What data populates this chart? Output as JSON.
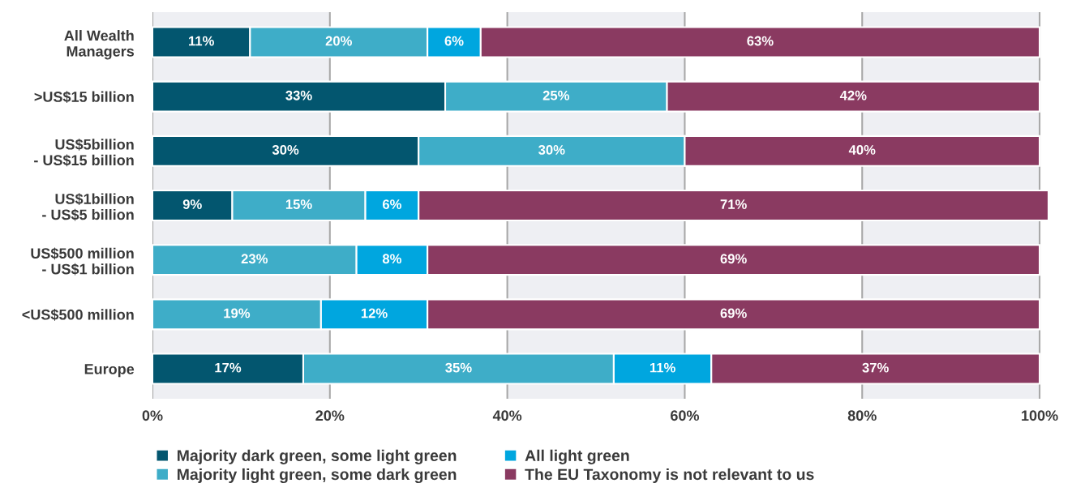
{
  "chart_data": {
    "type": "bar",
    "orientation": "horizontal",
    "stacked": true,
    "categories": [
      "All Wealth\nManagers",
      ">US$15 billion",
      "US$5billion\n- US$15 billion",
      "US$1billion\n- US$5 billion",
      "US$500 million\n- US$1 billion",
      "<US$500 million",
      "Europe"
    ],
    "series": [
      {
        "name": "Majority dark green, some light green",
        "color": "#03566f",
        "values": [
          11,
          33,
          30,
          9,
          null,
          null,
          17
        ],
        "value_labels": [
          "11%",
          "33%",
          "30%",
          "9%",
          null,
          null,
          "17%"
        ]
      },
      {
        "name": "Majority light green, some dark green",
        "color": "#3eadc8",
        "values": [
          20,
          25,
          30,
          15,
          23,
          19,
          35
        ],
        "value_labels": [
          "20%",
          "25%",
          "30%",
          "15%",
          "23%",
          "19%",
          "35%"
        ]
      },
      {
        "name": "All light green",
        "color": "#00a6df",
        "values": [
          6,
          null,
          null,
          6,
          8,
          12,
          11
        ],
        "value_labels": [
          "6%",
          null,
          null,
          "6%",
          "8%",
          "12%",
          "11%"
        ]
      },
      {
        "name": "The EU Taxonomy is not relevant to us",
        "color": "#8a3a61",
        "values": [
          63,
          42,
          40,
          71,
          69,
          69,
          37
        ],
        "value_labels": [
          "63%",
          "42%",
          "40%",
          "71%",
          "69%",
          "69%",
          "37%"
        ]
      }
    ],
    "xlim": [
      0,
      101
    ],
    "xticks": [
      {
        "value": 0,
        "label": "0%"
      },
      {
        "value": 20,
        "label": "20%"
      },
      {
        "value": 40,
        "label": "40%"
      },
      {
        "value": 60,
        "label": "60%"
      },
      {
        "value": 80,
        "label": "80%"
      },
      {
        "value": 100,
        "label": "100%"
      }
    ],
    "bands": [
      {
        "axis": "x",
        "from": 0,
        "to": 20,
        "color": "#eeeff3"
      },
      {
        "axis": "x",
        "from": 40,
        "to": 60,
        "color": "#eeeff3"
      },
      {
        "axis": "x",
        "from": 80,
        "to": 100,
        "color": "#eeeff3"
      }
    ],
    "grid": "x",
    "legend": "bottom"
  }
}
